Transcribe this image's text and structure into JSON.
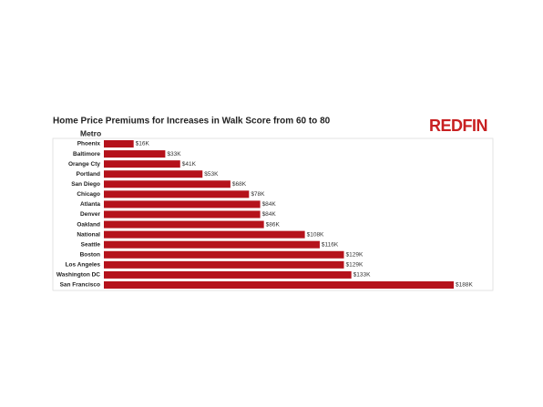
{
  "chart_data": {
    "type": "bar",
    "orientation": "horizontal",
    "title": "Home Price Premiums for Increases in Walk Score from 60 to 80",
    "category_label": "Metro",
    "brand": "REDFIN",
    "categories": [
      "Phoenix",
      "Baltimore",
      "Orange Cty",
      "Portland",
      "San Diego",
      "Chicago",
      "Atlanta",
      "Denver",
      "Oakland",
      "National",
      "Seattle",
      "Boston",
      "Los Angeles",
      "Washington DC",
      "San Francisco"
    ],
    "values": [
      16000,
      33000,
      41000,
      53000,
      68000,
      78000,
      84000,
      84000,
      86000,
      108000,
      116000,
      129000,
      129000,
      133000,
      188000
    ],
    "value_labels": [
      "$16K",
      "$33K",
      "$41K",
      "$53K",
      "$68K",
      "$78K",
      "$84K",
      "$84K",
      "$86K",
      "$108K",
      "$116K",
      "$129K",
      "$129K",
      "$133K",
      "$188K"
    ],
    "color": "#b5121b"
  }
}
